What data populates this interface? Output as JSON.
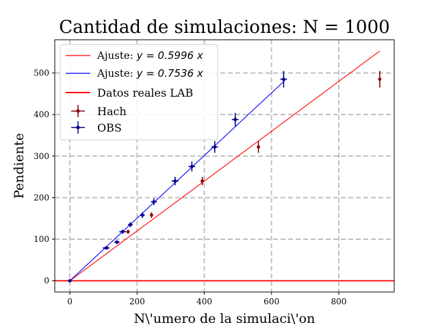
{
  "chart_data": {
    "type": "scatter",
    "title": "Cantidad de simulaciones: N = 1000",
    "xlabel": "N\\'umero de la simulaci\\'on",
    "ylabel": "Pendiente",
    "xlim": [
      -45,
      965
    ],
    "ylim": [
      -27,
      580
    ],
    "x_ticks": [
      0,
      200,
      400,
      600,
      800
    ],
    "y_ticks": [
      0,
      100,
      200,
      300,
      400,
      500
    ],
    "grid": true,
    "legend_position": "top-left",
    "fit_lines": [
      {
        "label_prefix": "Ajuste: ",
        "label_math": "y = 0.5996 x",
        "slope": 0.5996,
        "x_range": [
          0,
          922
        ],
        "color": "#ff0000"
      },
      {
        "label_prefix": "Ajuste: ",
        "label_math": "y = 0.7536 x",
        "slope": 0.7536,
        "x_range": [
          0,
          640
        ],
        "color": "#0000ff"
      }
    ],
    "reference_line": {
      "label": "Datos reales LAB",
      "y": 0,
      "color": "#ff0000"
    },
    "series": [
      {
        "name": "Hach",
        "color": "#8b0000",
        "points": [
          {
            "x": 0,
            "y": 0,
            "xerr": 3,
            "yerr": 3
          },
          {
            "x": 110,
            "y": 79,
            "xerr": 8,
            "yerr": 3
          },
          {
            "x": 140,
            "y": 93,
            "xerr": 5,
            "yerr": 4
          },
          {
            "x": 173,
            "y": 118,
            "xerr": 3,
            "yerr": 5
          },
          {
            "x": 243,
            "y": 158,
            "xerr": 3,
            "yerr": 7
          },
          {
            "x": 394,
            "y": 240,
            "xerr": 5,
            "yerr": 10
          },
          {
            "x": 561,
            "y": 322,
            "xerr": 3,
            "yerr": 14
          },
          {
            "x": 922,
            "y": 485,
            "xerr": 3,
            "yerr": 20
          }
        ]
      },
      {
        "name": "OBS",
        "color": "#00008b",
        "points": [
          {
            "x": 0,
            "y": 0,
            "xerr": 6,
            "yerr": 3
          },
          {
            "x": 108,
            "y": 79,
            "xerr": 10,
            "yerr": 3
          },
          {
            "x": 140,
            "y": 93,
            "xerr": 8,
            "yerr": 4
          },
          {
            "x": 157,
            "y": 118,
            "xerr": 10,
            "yerr": 5
          },
          {
            "x": 180,
            "y": 135,
            "xerr": 7,
            "yerr": 6
          },
          {
            "x": 216,
            "y": 158,
            "xerr": 7,
            "yerr": 7
          },
          {
            "x": 250,
            "y": 190,
            "xerr": 9,
            "yerr": 8
          },
          {
            "x": 313,
            "y": 240,
            "xerr": 10,
            "yerr": 10
          },
          {
            "x": 363,
            "y": 275,
            "xerr": 10,
            "yerr": 12
          },
          {
            "x": 431,
            "y": 322,
            "xerr": 10,
            "yerr": 14
          },
          {
            "x": 492,
            "y": 388,
            "xerr": 10,
            "yerr": 16
          },
          {
            "x": 636,
            "y": 485,
            "xerr": 10,
            "yerr": 20
          }
        ]
      }
    ]
  }
}
